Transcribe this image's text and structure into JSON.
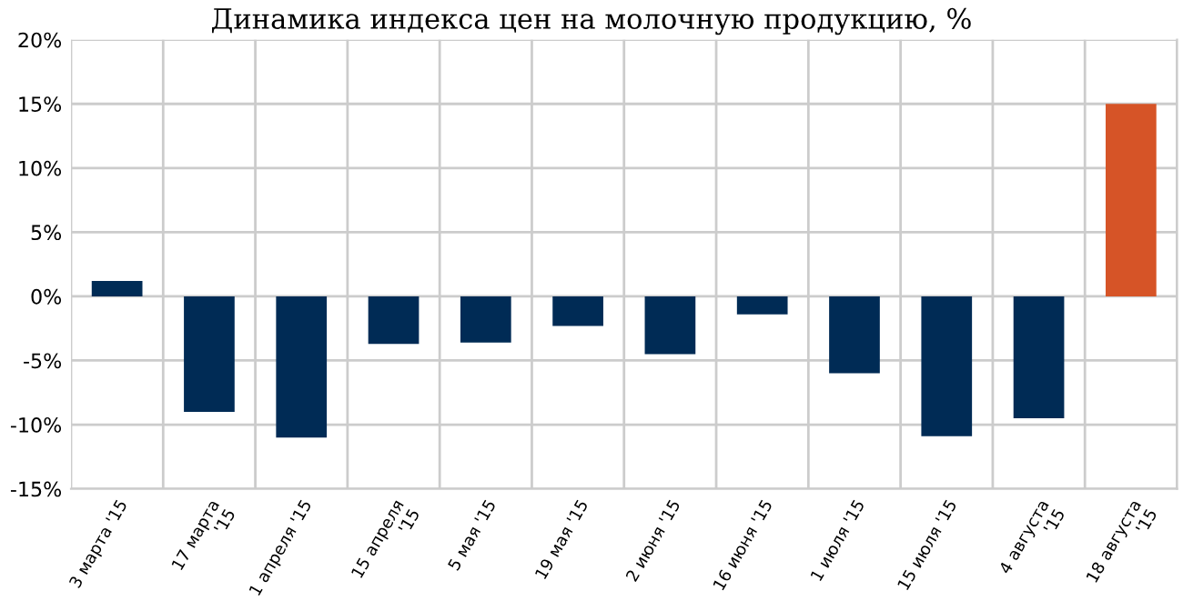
{
  "chart_data": {
    "type": "bar",
    "title": "Динамика индекса цен на молочную продукцию, %",
    "categories": [
      "3 марта '15",
      "17 марта\n'15",
      "1 апреля '15",
      "15 апреля\n'15",
      "5 мая '15",
      "19 мая '15",
      "2 июня '15",
      "16 июня '15",
      "1 июля '15",
      "15 июля '15",
      "4 августа\n'15",
      "18 августа\n'15"
    ],
    "values": [
      1.2,
      -9.0,
      -11.0,
      -3.7,
      -3.6,
      -2.3,
      -4.5,
      -1.4,
      -6.0,
      -10.9,
      -9.5,
      15.0
    ],
    "colors": [
      "#002b55",
      "#002b55",
      "#002b55",
      "#002b55",
      "#002b55",
      "#002b55",
      "#002b55",
      "#002b55",
      "#002b55",
      "#002b55",
      "#002b55",
      "#d65427"
    ],
    "ylim": [
      -15,
      20
    ],
    "yticks": [
      {
        "value": -15,
        "label": "-15%"
      },
      {
        "value": -10,
        "label": "-10%"
      },
      {
        "value": -5,
        "label": "-5%"
      },
      {
        "value": 0,
        "label": "0%"
      },
      {
        "value": 5,
        "label": "5%"
      },
      {
        "value": 10,
        "label": "10%"
      },
      {
        "value": 15,
        "label": "15%"
      },
      {
        "value": 20,
        "label": "20%"
      }
    ],
    "grid": true
  }
}
